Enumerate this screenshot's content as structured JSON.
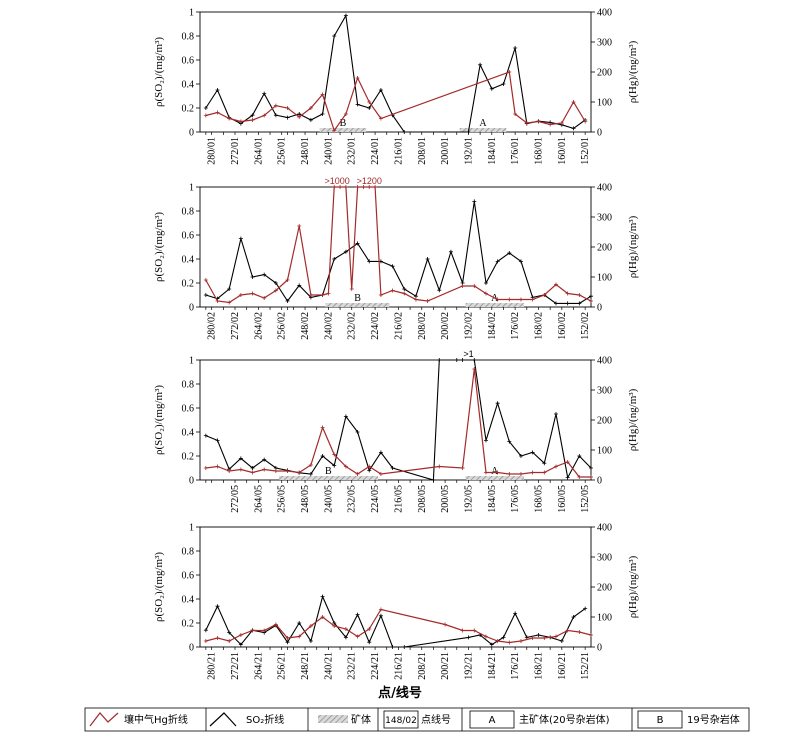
{
  "xaxis_title": "点/线号",
  "left_axis": {
    "label": "ρ(SO₂)/(mg/m³)",
    "ticks": [
      "0",
      "0.2",
      "0.4",
      "0.6",
      "0.8",
      "1"
    ]
  },
  "right_axis": {
    "label": "ρ(Hg)/(ng/m³)",
    "ticks": [
      "0",
      "100",
      "200",
      "300",
      "400"
    ]
  },
  "legend": {
    "hg_line": "壤中气Hg折线",
    "so2_line": "SO₂折线",
    "ore_body": "矿体",
    "point_line_box": "148/02",
    "point_line": "点线号",
    "a_box": "A",
    "a_label": "主矿体(20号杂岩体)",
    "b_box": "B",
    "b_label": "19号杂岩体"
  },
  "colors": {
    "hg": "#a52a2a",
    "so2": "#000000",
    "ore": "#b0b0b0"
  },
  "chart_data": [
    {
      "type": "line",
      "line_id": "01",
      "x": [
        281,
        279,
        275,
        271,
        267,
        263,
        259,
        255,
        253,
        251,
        247,
        243,
        239,
        235,
        231,
        227,
        223,
        219,
        215,
        211,
        207,
        203,
        199,
        195,
        191,
        187,
        183,
        179,
        175,
        171,
        167,
        163,
        159,
        155,
        151
      ],
      "x_ticks": [
        "280/01",
        "272/01",
        "264/01",
        "256/01",
        "248/01",
        "240/01",
        "232/01",
        "224/01",
        "216/01",
        "208/01",
        "200/01",
        "192/01",
        "184/01",
        "176/01",
        "168/01",
        "160/01",
        "152/01"
      ],
      "series": [
        {
          "name": "SO₂折线",
          "axis": "left",
          "x": [
            281,
            277,
            273,
            269,
            265,
            261,
            257,
            253,
            249,
            245,
            241,
            237,
            233,
            229,
            225,
            221,
            217,
            213,
            191,
            187,
            183,
            179,
            175,
            171,
            167,
            163,
            159,
            155,
            151
          ],
          "values": [
            0.2,
            0.35,
            0.12,
            0.07,
            0.14,
            0.32,
            0.14,
            0.12,
            0.15,
            0.1,
            0.15,
            0.8,
            0.97,
            0.23,
            0.2,
            0.35,
            0.14,
            0.0,
            0.0,
            0.56,
            0.36,
            0.4,
            0.7,
            0.07,
            0.09,
            0.08,
            0.06,
            0.03,
            0.1
          ]
        },
        {
          "name": "壤中气Hg折线",
          "axis": "right",
          "x": [
            281,
            277,
            273,
            269,
            265,
            261,
            257,
            253,
            249,
            245,
            241,
            237,
            233,
            229,
            225,
            221,
            177,
            175,
            171,
            167,
            163,
            159,
            155,
            151
          ],
          "values": [
            55,
            65,
            45,
            35,
            40,
            55,
            88,
            80,
            50,
            80,
            125,
            5,
            60,
            180,
            100,
            45,
            200,
            60,
            30,
            35,
            25,
            30,
            100,
            35
          ]
        }
      ],
      "zones": [
        {
          "label": "B",
          "from": 242,
          "to": 226
        },
        {
          "label": "A",
          "from": 194,
          "to": 178
        }
      ],
      "ylim_left": [
        0,
        1
      ],
      "ylim_right": [
        0,
        400
      ]
    },
    {
      "type": "line",
      "line_id": "02",
      "x": [
        281,
        279,
        275,
        271,
        267,
        263,
        259,
        255,
        253,
        251,
        247,
        243,
        239,
        235,
        231,
        227,
        223,
        219,
        215,
        211,
        207,
        203,
        199,
        195,
        191,
        187,
        183,
        179,
        175,
        171,
        167,
        163,
        159,
        155,
        151
      ],
      "x_ticks": [
        "280/02",
        "272/02",
        "264/02",
        "256/02",
        "248/02",
        "240/02",
        "232/02",
        "224/02",
        "216/02",
        "208/02",
        "200/02",
        "192/02",
        "184/02",
        "176/02",
        "168/02",
        "160/02",
        "152/02"
      ],
      "series": [
        {
          "name": "SO₂折线",
          "axis": "left",
          "x": [
            281,
            277,
            273,
            269,
            265,
            261,
            257,
            253,
            249,
            245,
            241,
            237,
            233,
            229,
            225,
            221,
            217,
            213,
            209,
            205,
            201,
            197,
            193,
            189,
            185,
            181,
            177,
            173,
            169,
            165,
            161,
            157,
            153,
            149
          ],
          "values": [
            0.1,
            0.07,
            0.15,
            0.57,
            0.25,
            0.27,
            0.2,
            0.05,
            0.18,
            0.08,
            0.1,
            0.4,
            0.46,
            0.53,
            0.38,
            0.38,
            0.34,
            0.15,
            0.09,
            0.4,
            0.14,
            0.46,
            0.2,
            0.88,
            0.2,
            0.38,
            0.45,
            0.38,
            0.08,
            0.1,
            0.03,
            0.03,
            0.03,
            0.09
          ]
        },
        {
          "name": "壤中气Hg折线",
          "axis": "right",
          "x": [
            281,
            277,
            273,
            269,
            265,
            261,
            257,
            253,
            249,
            245,
            241,
            239,
            237,
            235,
            233,
            231,
            229,
            227,
            225,
            223,
            221,
            217,
            213,
            209,
            205,
            193,
            189,
            185,
            181,
            177,
            173,
            169,
            165,
            161,
            157,
            153,
            149
          ],
          "values": [
            90,
            20,
            15,
            40,
            45,
            30,
            55,
            90,
            270,
            40,
            40,
            45,
            400,
            400,
            400,
            60,
            400,
            400,
            400,
            400,
            40,
            55,
            45,
            25,
            20,
            70,
            70,
            45,
            25,
            25,
            25,
            25,
            40,
            75,
            45,
            40,
            20
          ]
        }
      ],
      "zones": [
        {
          "label": "B",
          "from": 240,
          "to": 218
        },
        {
          "label": "A",
          "from": 192,
          "to": 172
        }
      ],
      "annotations": [
        "&gt;1000",
        "&gt;1200"
      ],
      "ylim_left": [
        0,
        1
      ],
      "ylim_right": [
        0,
        400
      ]
    },
    {
      "type": "line",
      "line_id": "05",
      "x": [
        281,
        279,
        275,
        271,
        267,
        263,
        259,
        255,
        253,
        251,
        247,
        243,
        239,
        235,
        231,
        227,
        223,
        219,
        215,
        211,
        207,
        203,
        199,
        195,
        191,
        187,
        183,
        179,
        175,
        171,
        167,
        163,
        159,
        155,
        151
      ],
      "x_ticks": [
        "272/05",
        "264/05",
        "256/05",
        "248/05",
        "240/05",
        "232/05",
        "224/05",
        "216/05",
        "208/05",
        "200/05",
        "192/05",
        "184/05",
        "176/05",
        "168/05",
        "160/05",
        "152/05"
      ],
      "series": [
        {
          "name": "SO₂折线",
          "axis": "left",
          "x": [
            281,
            277,
            273,
            269,
            265,
            261,
            257,
            253,
            249,
            245,
            241,
            237,
            233,
            229,
            225,
            221,
            217,
            203,
            201,
            195,
            193,
            189,
            185,
            181,
            177,
            173,
            169,
            165,
            161,
            157,
            153,
            149
          ],
          "values": [
            0.37,
            0.33,
            0.09,
            0.18,
            0.1,
            0.17,
            0.1,
            0.08,
            0.06,
            0.05,
            0.2,
            0.12,
            0.53,
            0.4,
            0.08,
            0.23,
            0.1,
            0.0,
            1.0,
            1.0,
            1.0,
            1.0,
            0.33,
            0.64,
            0.32,
            0.2,
            0.23,
            0.14,
            0.55,
            0.02,
            0.2,
            0.1
          ]
        },
        {
          "name": "壤中气Hg折线",
          "axis": "right",
          "x": [
            281,
            277,
            273,
            269,
            265,
            261,
            257,
            253,
            249,
            245,
            241,
            237,
            233,
            229,
            225,
            221,
            201,
            193,
            189,
            185,
            181,
            177,
            173,
            169,
            165,
            161,
            157,
            153,
            149
          ],
          "values": [
            40,
            45,
            30,
            35,
            25,
            35,
            30,
            30,
            25,
            50,
            175,
            85,
            45,
            20,
            45,
            20,
            45,
            40,
            370,
            25,
            25,
            20,
            20,
            25,
            25,
            45,
            60,
            10,
            10
          ]
        }
      ],
      "zones": [
        {
          "label": "B",
          "from": 256,
          "to": 222
        },
        {
          "label": "A",
          "from": 192,
          "to": 172
        }
      ],
      "annotations": [
        "&gt;1"
      ],
      "ylim_left": [
        0,
        1
      ],
      "ylim_right": [
        0,
        400
      ]
    },
    {
      "type": "line",
      "line_id": "21",
      "x": [
        281,
        279,
        275,
        271,
        267,
        263,
        259,
        255,
        253,
        251,
        247,
        243,
        239,
        235,
        231,
        227,
        223,
        219,
        215,
        211,
        207,
        203,
        199,
        195,
        191,
        187,
        183,
        179,
        175,
        171,
        167,
        163,
        159,
        155,
        151
      ],
      "x_ticks": [
        "280/21",
        "272/21",
        "264/21",
        "256/21",
        "248/21",
        "240/21",
        "232/21",
        "224/21",
        "216/21",
        "208/21",
        "200/21",
        "192/21",
        "184/21",
        "176/21",
        "168/21",
        "160/21",
        "152/21"
      ],
      "series": [
        {
          "name": "SO₂折线",
          "axis": "left",
          "x": [
            281,
            277,
            273,
            269,
            265,
            261,
            257,
            253,
            249,
            245,
            241,
            237,
            233,
            229,
            225,
            221,
            217,
            213,
            191,
            187,
            183,
            179,
            175,
            171,
            167,
            163,
            159,
            155,
            151
          ],
          "values": [
            0.14,
            0.34,
            0.12,
            0.02,
            0.14,
            0.12,
            0.18,
            0.04,
            0.2,
            0.05,
            0.42,
            0.2,
            0.08,
            0.27,
            0.04,
            0.26,
            0.0,
            0.0,
            0.08,
            0.1,
            0.02,
            0.08,
            0.28,
            0.08,
            0.1,
            0.08,
            0.05,
            0.25,
            0.32
          ]
        },
        {
          "name": "壤中气Hg折线",
          "axis": "right",
          "x": [
            281,
            277,
            273,
            269,
            265,
            261,
            257,
            253,
            249,
            245,
            241,
            237,
            233,
            229,
            225,
            221,
            199,
            193,
            189,
            185,
            181,
            177,
            173,
            169,
            165,
            161,
            157,
            153,
            149
          ],
          "values": [
            20,
            30,
            20,
            40,
            55,
            55,
            75,
            30,
            35,
            70,
            100,
            70,
            60,
            35,
            60,
            125,
            75,
            55,
            55,
            35,
            20,
            15,
            20,
            30,
            30,
            35,
            55,
            50,
            40
          ]
        }
      ],
      "zones": [],
      "ylim_left": [
        0,
        1
      ],
      "ylim_right": [
        0,
        400
      ]
    }
  ]
}
